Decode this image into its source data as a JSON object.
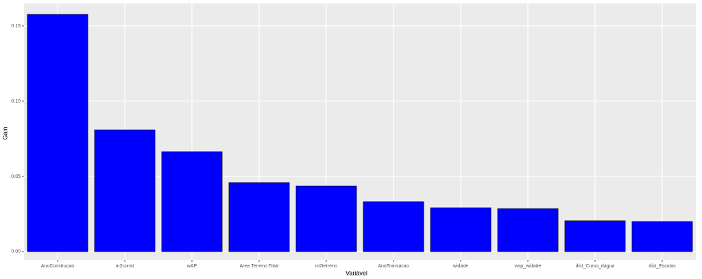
{
  "chart_data": {
    "type": "bar",
    "categories": [
      "AnoConstrucao",
      "m2const",
      "wAP",
      "Area Terreno Total",
      "m2terreno",
      "AnoTransacao",
      "widade",
      "wsp_widade",
      "dist_Curso_dagua",
      "dist_Escolas"
    ],
    "values": [
      0.1577,
      0.0809,
      0.0664,
      0.0459,
      0.0436,
      0.0332,
      0.0291,
      0.0286,
      0.0205,
      0.02
    ],
    "color": "#0000ff",
    "xlabel": "Variável",
    "ylabel": "Gain",
    "ylim": [
      -0.0055,
      0.165
    ],
    "yticks": [
      {
        "value": 0,
        "label": "0.00"
      },
      {
        "value": 0.05,
        "label": "0.05"
      },
      {
        "value": 0.1,
        "label": "0.10"
      },
      {
        "value": 0.15,
        "label": "0.15"
      }
    ],
    "grid": true
  }
}
